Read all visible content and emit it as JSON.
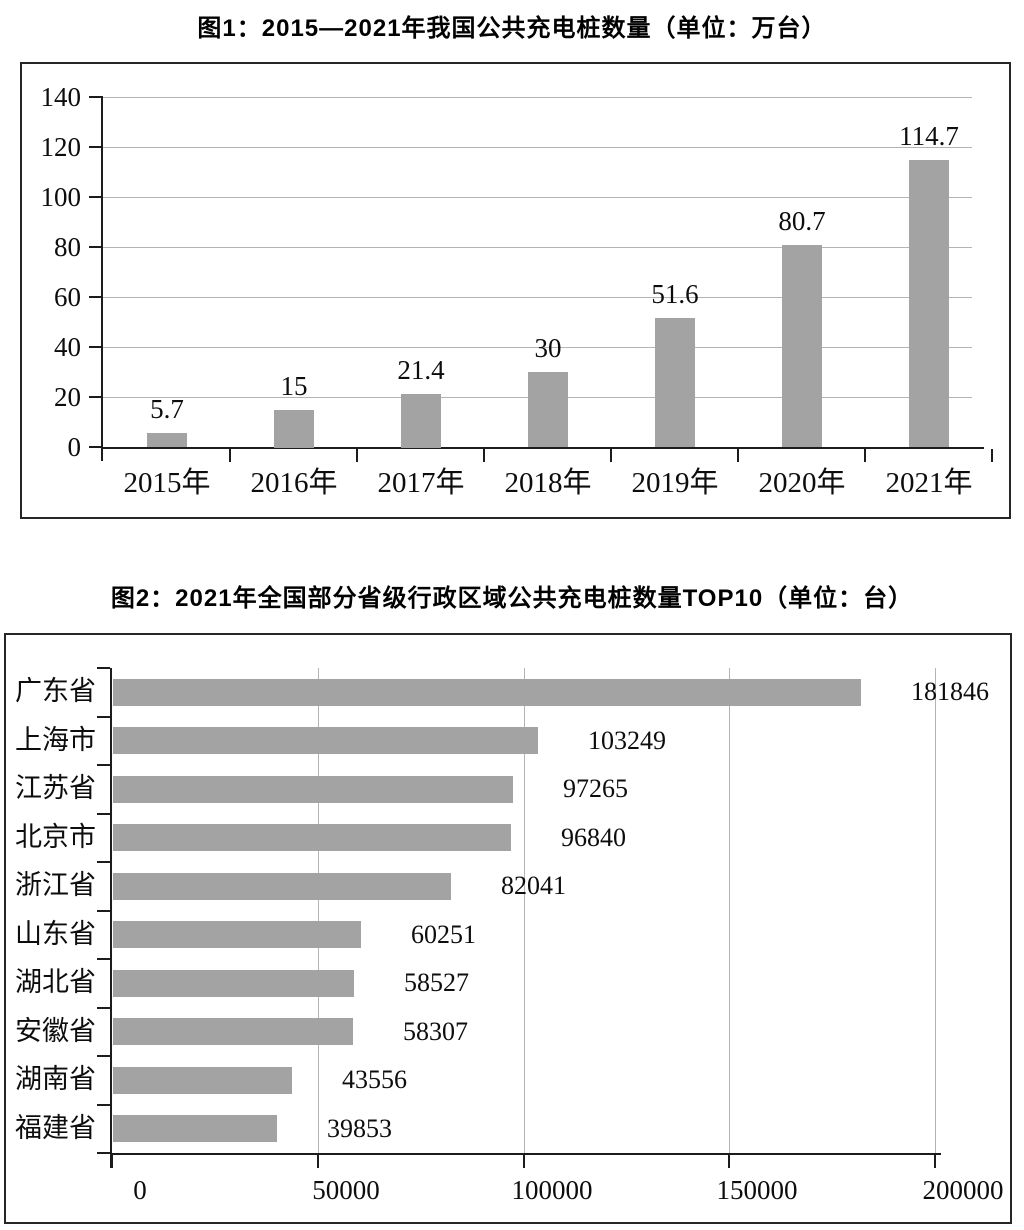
{
  "chart_data": [
    {
      "type": "bar",
      "title": "图1：2015—2021年我国公共充电桩数量（单位：万台）",
      "unit": "万台",
      "categories": [
        "2015年",
        "2016年",
        "2017年",
        "2018年",
        "2019年",
        "2020年",
        "2021年"
      ],
      "values": [
        5.7,
        15,
        21.4,
        30,
        51.6,
        80.7,
        114.7
      ],
      "value_labels": [
        "5.7",
        "15",
        "21.4",
        "30",
        "51.6",
        "80.7",
        "114.7"
      ],
      "xlabel": "",
      "ylabel": "",
      "ylim": [
        0,
        140
      ],
      "yticks": [
        0,
        20,
        40,
        60,
        80,
        100,
        120,
        140
      ],
      "ytick_labels": [
        "0",
        "20",
        "40",
        "60",
        "80",
        "100",
        "120",
        "140"
      ],
      "grid": "horizontal",
      "legend": "none",
      "bar_color": "#a3a3a3",
      "gridline_color": "#b4b4b4"
    },
    {
      "type": "horizontal-bar",
      "title": "图2：2021年全国部分省级行政区域公共充电桩数量TOP10（单位：台）",
      "unit": "台",
      "categories": [
        "广东省",
        "上海市",
        "江苏省",
        "北京市",
        "浙江省",
        "山东省",
        "湖北省",
        "安徽省",
        "湖南省",
        "福建省"
      ],
      "values": [
        181846,
        103249,
        97265,
        96840,
        82041,
        60251,
        58527,
        58307,
        43556,
        39853
      ],
      "value_labels": [
        "181846",
        "103249",
        "97265",
        "96840",
        "82041",
        "60251",
        "58527",
        "58307",
        "43556",
        "39853"
      ],
      "xlabel": "",
      "ylabel": "",
      "xlim": [
        0,
        200000
      ],
      "xticks": [
        0,
        50000,
        100000,
        150000,
        200000
      ],
      "xtick_labels": [
        "0",
        "50000",
        "100000",
        "150000",
        "200000"
      ],
      "grid": "vertical",
      "legend": "none",
      "bar_color": "#a3a3a3",
      "gridline_color": "#b4b4b4"
    }
  ]
}
